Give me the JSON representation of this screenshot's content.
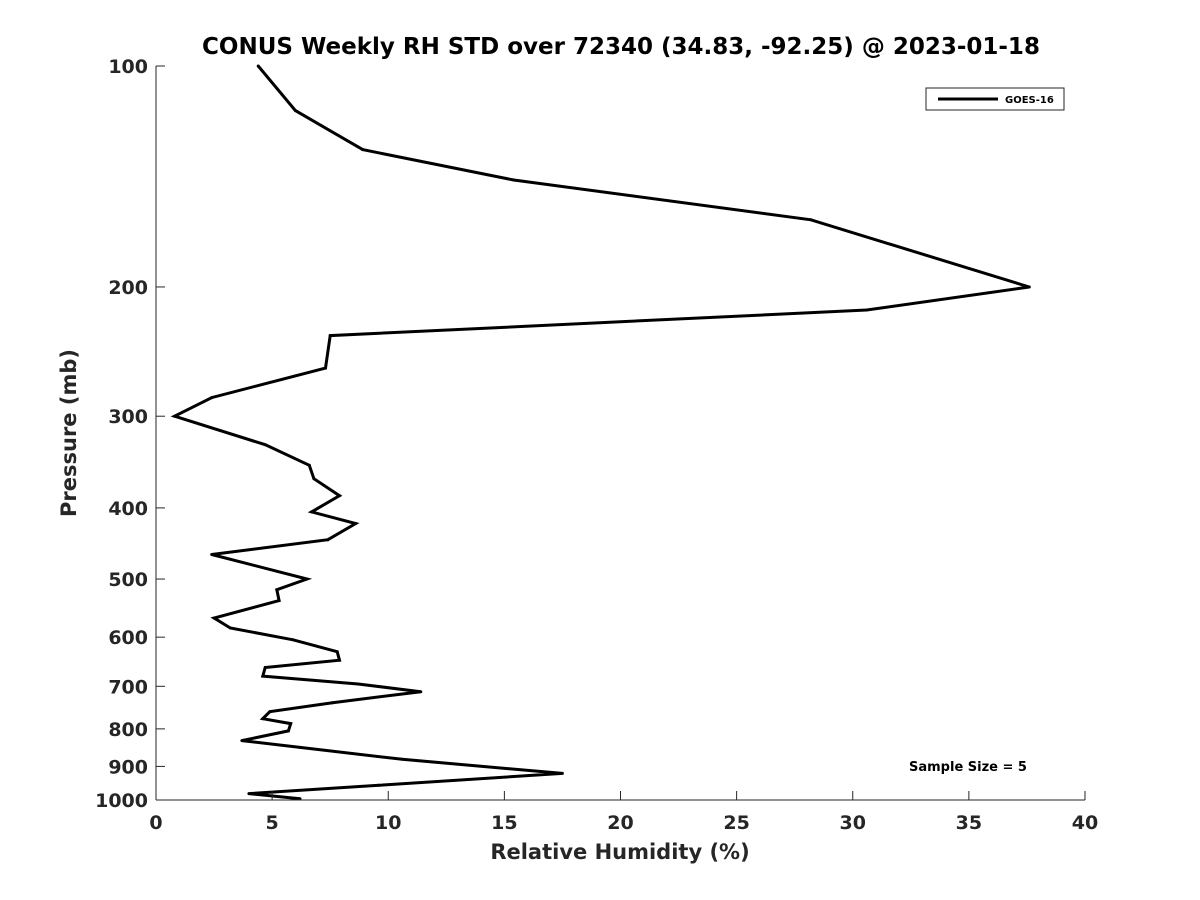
{
  "chart_data": {
    "type": "line",
    "title": "CONUS Weekly RH STD over 72340 (34.83, -92.25) @ 2023-01-18",
    "xlabel": "Relative Humidity (%)",
    "ylabel": "Pressure (mb)",
    "xlim": [
      0,
      40
    ],
    "ylim": [
      100,
      1000
    ],
    "y_scale": "log",
    "y_direction": "reversed",
    "x_ticks": [
      "0",
      "5",
      "10",
      "15",
      "20",
      "25",
      "30",
      "35",
      "40"
    ],
    "y_ticks": [
      "100",
      "200",
      "300",
      "400",
      "500",
      "600",
      "700",
      "800",
      "900",
      "1000"
    ],
    "grid": false,
    "legend_position": "top-right",
    "annotation": "Sample Size = 5",
    "series": [
      {
        "name": "GOES-16",
        "color": "#000000",
        "points": [
          [
            4.4,
            100
          ],
          [
            6.0,
            115
          ],
          [
            8.9,
            130
          ],
          [
            15.4,
            143
          ],
          [
            28.2,
            162
          ],
          [
            37.6,
            200
          ],
          [
            30.6,
            215
          ],
          [
            7.5,
            233
          ],
          [
            7.3,
            258
          ],
          [
            2.4,
            283
          ],
          [
            0.8,
            300
          ],
          [
            4.7,
            328
          ],
          [
            6.6,
            350
          ],
          [
            6.8,
            365
          ],
          [
            7.9,
            385
          ],
          [
            6.7,
            405
          ],
          [
            8.6,
            420
          ],
          [
            7.4,
            442
          ],
          [
            2.4,
            463
          ],
          [
            6.5,
            500
          ],
          [
            5.2,
            517
          ],
          [
            5.3,
            535
          ],
          [
            2.5,
            565
          ],
          [
            3.2,
            583
          ],
          [
            5.9,
            605
          ],
          [
            7.8,
            628
          ],
          [
            7.9,
            645
          ],
          [
            4.7,
            660
          ],
          [
            4.6,
            678
          ],
          [
            8.7,
            695
          ],
          [
            11.4,
            712
          ],
          [
            7.6,
            737
          ],
          [
            4.9,
            758
          ],
          [
            4.6,
            775
          ],
          [
            5.8,
            787
          ],
          [
            5.7,
            805
          ],
          [
            3.7,
            830
          ],
          [
            6.2,
            848
          ],
          [
            10.6,
            880
          ],
          [
            17.5,
            920
          ],
          [
            9.6,
            955
          ],
          [
            4.0,
            980
          ],
          [
            6.2,
            996
          ]
        ]
      }
    ]
  }
}
